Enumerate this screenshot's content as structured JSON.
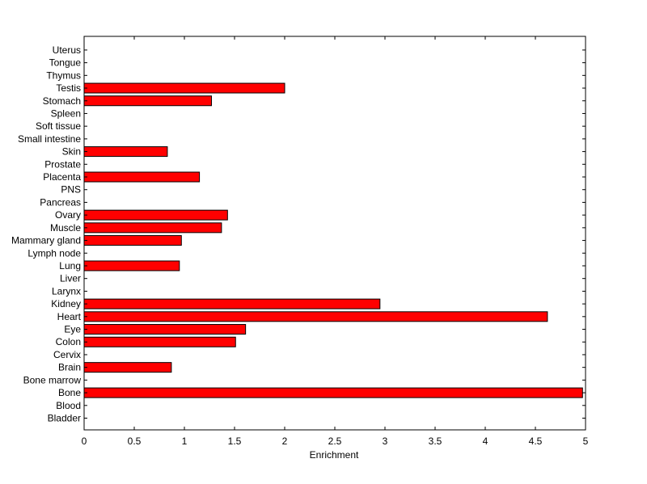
{
  "chart_data": {
    "type": "bar",
    "orientation": "horizontal",
    "categories": [
      "Bladder",
      "Blood",
      "Bone",
      "Bone marrow",
      "Brain",
      "Cervix",
      "Colon",
      "Eye",
      "Heart",
      "Kidney",
      "Larynx",
      "Liver",
      "Lung",
      "Lymph node",
      "Mammary gland",
      "Muscle",
      "Ovary",
      "Pancreas",
      "PNS",
      "Placenta",
      "Prostate",
      "Skin",
      "Small intestine",
      "Soft tissue",
      "Spleen",
      "Stomach",
      "Testis",
      "Thymus",
      "Tongue",
      "Uterus"
    ],
    "values": [
      0,
      0,
      4.97,
      0,
      0.87,
      0,
      1.51,
      1.61,
      4.62,
      2.95,
      0,
      0,
      0.95,
      0,
      0.97,
      1.37,
      1.43,
      0,
      0,
      1.15,
      0,
      0.83,
      0,
      0,
      0,
      1.27,
      2.0,
      0,
      0,
      0
    ],
    "xlabel": "Enrichment",
    "ylabel": "",
    "title": "",
    "xlim": [
      0,
      5
    ],
    "xticks": [
      "0",
      "0.5",
      "1",
      "1.5",
      "2",
      "2.5",
      "3",
      "3.5",
      "4",
      "4.5",
      "5"
    ],
    "bar_color": "#ff0000",
    "edge_color": "#000000",
    "grid": false,
    "legend": "none"
  }
}
